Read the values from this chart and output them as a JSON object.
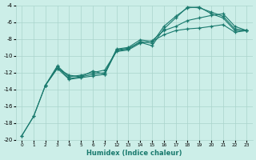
{
  "xlabel": "Humidex (Indice chaleur)",
  "bg_color": "#cceee8",
  "grid_color": "#aad4cc",
  "line_color": "#1a7a6e",
  "ylim": [
    -20,
    -4
  ],
  "yticks": [
    -20,
    -18,
    -16,
    -14,
    -12,
    -10,
    -8,
    -6,
    -4
  ],
  "x_labels": [
    "0",
    "1",
    "2",
    "3",
    "4",
    "5",
    "6",
    "7",
    "12",
    "13",
    "14",
    "15",
    "16",
    "17",
    "18",
    "19",
    "20",
    "21",
    "22",
    "23"
  ],
  "x_values": [
    0,
    1,
    2,
    3,
    4,
    5,
    6,
    7,
    12,
    13,
    14,
    15,
    16,
    17,
    18,
    19,
    20,
    21,
    22,
    23
  ],
  "series": [
    {
      "x": [
        0,
        1,
        2,
        3,
        4,
        5,
        6,
        7,
        12,
        13,
        14,
        15,
        16,
        17,
        18,
        19,
        20,
        21,
        22,
        23
      ],
      "y": [
        -19.5,
        -17.2,
        -13.5,
        -11.2,
        -12.5,
        -12.3,
        -12.0,
        -11.7,
        -9.5,
        -9.3,
        -8.5,
        -8.2,
        -7.0,
        -6.5,
        -5.8,
        -5.5,
        -5.2,
        -5.0,
        -6.5,
        -7.0
      ]
    },
    {
      "x": [
        2,
        3,
        4,
        5,
        6,
        7,
        12,
        13,
        14,
        15,
        16,
        17,
        18,
        19,
        20,
        21,
        22,
        23
      ],
      "y": [
        -13.5,
        -11.3,
        -12.7,
        -12.5,
        -12.2,
        -12.0,
        -9.3,
        -9.1,
        -8.4,
        -8.8,
        -6.8,
        -5.5,
        -4.2,
        -4.3,
        -4.8,
        -5.3,
        -6.8,
        -7.0
      ]
    },
    {
      "x": [
        2,
        3,
        4,
        5,
        6,
        7,
        12,
        13,
        14,
        15,
        16,
        17,
        18,
        19,
        20,
        21,
        22,
        23
      ],
      "y": [
        -13.5,
        -11.5,
        -12.8,
        -12.6,
        -12.4,
        -12.2,
        -9.4,
        -9.2,
        -8.3,
        -8.5,
        -6.5,
        -5.3,
        -4.3,
        -4.2,
        -5.0,
        -5.5,
        -7.0,
        -7.0
      ]
    },
    {
      "x": [
        0,
        1,
        2,
        3,
        4,
        5,
        6,
        7,
        12,
        13,
        14,
        15,
        16,
        17,
        18,
        19,
        20,
        21,
        22,
        23
      ],
      "y": [
        -19.5,
        -17.2,
        -13.5,
        -11.5,
        -12.3,
        -12.5,
        -11.8,
        -12.2,
        -9.2,
        -9.0,
        -8.1,
        -8.3,
        -7.5,
        -7.0,
        -6.8,
        -6.7,
        -6.5,
        -6.3,
        -7.2,
        -7.0
      ]
    }
  ]
}
